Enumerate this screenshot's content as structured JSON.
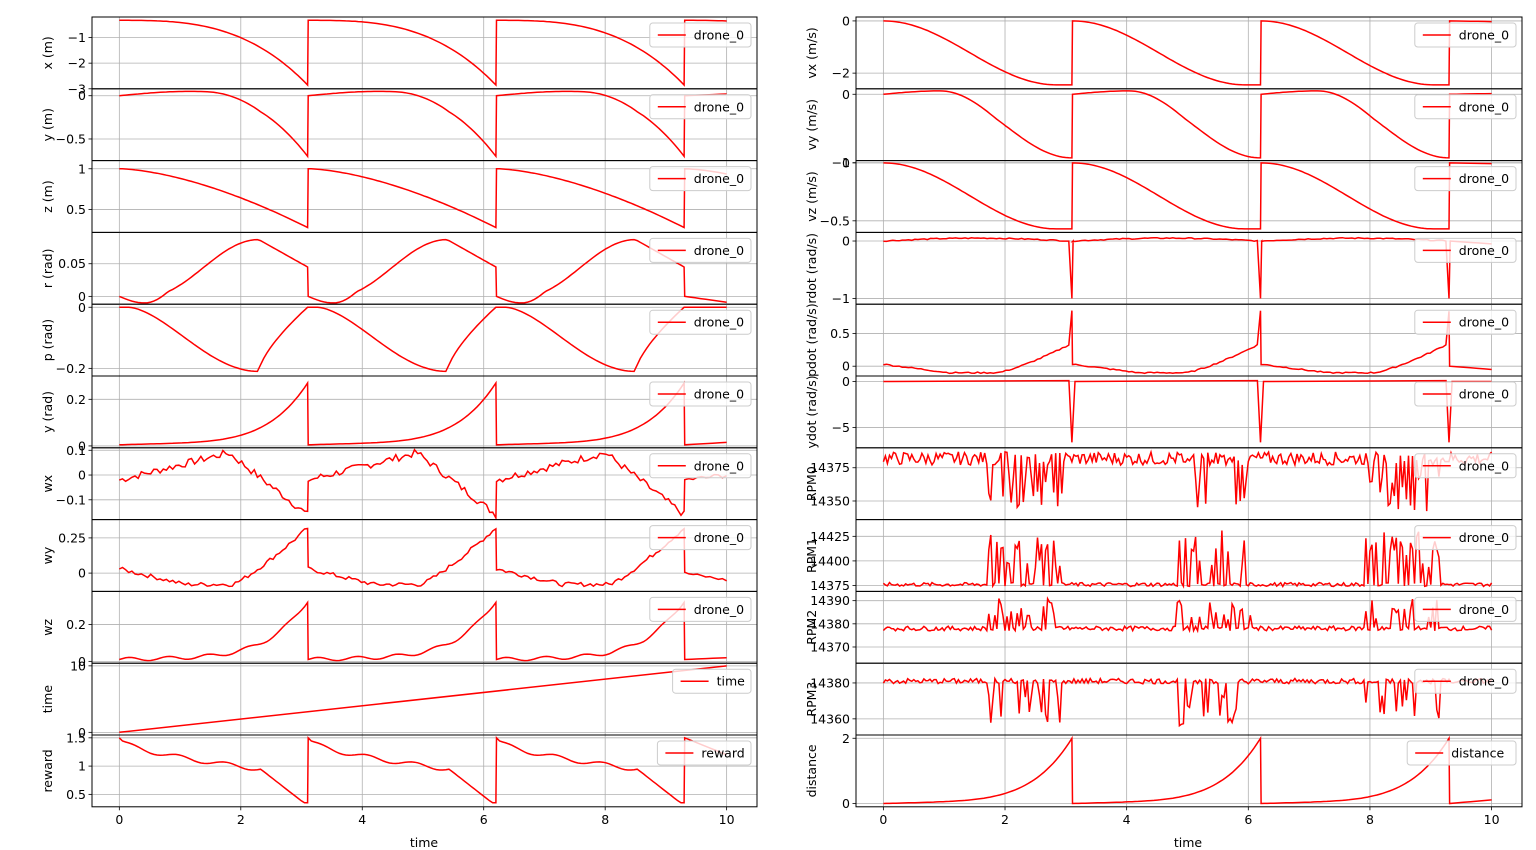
{
  "figure": {
    "xlabel": "time",
    "xlim": [
      -0.45,
      10.5
    ],
    "xticks": [
      0,
      2,
      4,
      6,
      8,
      10
    ],
    "line_color": "#ff0000"
  },
  "chart_data": [
    {
      "type": "line",
      "ylabel": "x (m)",
      "legend": "drone_0",
      "legend_position": "upper-right",
      "ylim": [
        -3,
        -0.2
      ],
      "yticks": [
        -3,
        -2,
        -1
      ],
      "shape": "decay",
      "params": {
        "a": -0.33,
        "b": -2.85,
        "p": 3
      },
      "x": [
        0,
        1,
        2,
        3.1,
        3.11,
        4.1,
        5.1,
        6.2,
        6.21,
        7.2,
        8.2,
        9.3,
        9.31,
        10
      ],
      "y": [
        -0.33,
        -0.39,
        -0.85,
        -2.85,
        -0.33,
        -0.39,
        -0.85,
        -2.85,
        -0.33,
        -0.39,
        -0.85,
        -2.85,
        -0.33,
        -0.33
      ]
    },
    {
      "type": "line",
      "ylabel": "y (m)",
      "legend": "drone_0",
      "legend_position": "upper-right",
      "ylim": [
        -0.75,
        0.08
      ],
      "yticks": [
        -0.5,
        0
      ],
      "shape": "dip",
      "params": {
        "a": 0,
        "b": -0.7,
        "up": 0.05,
        "p": 2.2
      },
      "x": [
        0,
        1,
        1.6,
        2.4,
        3.1,
        3.11,
        4.1,
        4.7,
        5.5,
        6.2,
        6.21,
        7.2,
        7.8,
        8.6,
        9.3,
        9.31,
        10
      ],
      "y": [
        0,
        0.03,
        0.05,
        -0.1,
        -0.7,
        0,
        0.03,
        0.05,
        -0.1,
        -0.7,
        0,
        0.03,
        0.05,
        -0.1,
        -0.7,
        0.01,
        0.02
      ]
    },
    {
      "type": "line",
      "ylabel": "z (m)",
      "legend": "drone_0",
      "legend_position": "upper-right",
      "ylim": [
        0.22,
        1.1
      ],
      "yticks": [
        0.5,
        1.0
      ],
      "shape": "decay",
      "params": {
        "a": 1.0,
        "b": 0.28,
        "p": 1.6
      },
      "x": [
        0,
        1,
        2,
        3.1,
        3.11,
        4.1,
        5.1,
        6.2,
        6.21,
        7.2,
        8.2,
        9.3,
        9.31,
        10
      ],
      "y": [
        1.0,
        0.96,
        0.82,
        0.28,
        1.0,
        0.96,
        0.82,
        0.28,
        1.0,
        0.96,
        0.82,
        0.28,
        1.0,
        0.98
      ]
    },
    {
      "type": "line",
      "ylabel": "r (rad)",
      "legend": "drone_0",
      "legend_position": "upper-right",
      "ylim": [
        -0.012,
        0.098
      ],
      "yticks": [
        0,
        0.05
      ],
      "shape": "bump",
      "params": {
        "low": -0.01,
        "high": 0.087,
        "end": 0.045
      },
      "x": [
        0,
        0.6,
        1.6,
        2.3,
        2.7,
        3.05,
        3.1,
        3.11,
        3.7,
        4.7,
        5.4,
        5.8,
        6.15,
        6.2,
        6.21,
        6.8,
        7.8,
        8.5,
        8.9,
        9.25,
        9.3,
        9.31,
        10
      ],
      "y": [
        0,
        -0.009,
        0.03,
        0.087,
        0.075,
        0.048,
        0.045,
        0,
        -0.009,
        0.03,
        0.087,
        0.075,
        0.048,
        0.045,
        0,
        -0.009,
        0.03,
        0.087,
        0.075,
        0.048,
        0.045,
        0,
        -0.009
      ]
    },
    {
      "type": "line",
      "ylabel": "p (rad)",
      "legend": "drone_0",
      "legend_position": "upper-right",
      "ylim": [
        -0.225,
        0.01
      ],
      "yticks": [
        -0.2,
        0
      ],
      "shape": "valley",
      "params": {
        "low": -0.21
      },
      "x": [
        0,
        0.3,
        1.5,
        2.3,
        3.1,
        3.11,
        3.5,
        4.7,
        5.4,
        6.2,
        6.21,
        6.6,
        7.8,
        8.5,
        9.3,
        9.31,
        10
      ],
      "y": [
        0,
        0,
        -0.13,
        -0.21,
        -0.01,
        0,
        0,
        -0.13,
        -0.21,
        -0.01,
        0,
        0,
        -0.13,
        -0.21,
        -0.01,
        0,
        0
      ]
    },
    {
      "type": "line",
      "ylabel": "y (rad)",
      "legend": "drone_0",
      "legend_position": "upper-right",
      "ylim": [
        -0.008,
        0.3
      ],
      "yticks": [
        0,
        0.2
      ],
      "shape": "rise",
      "params": {
        "a": 0.005,
        "b": 0.27
      },
      "x": [
        0,
        1,
        2,
        2.6,
        3.1,
        3.11,
        4.1,
        5.1,
        5.7,
        6.2,
        6.21,
        7.2,
        8.2,
        8.8,
        9.3,
        9.31,
        10
      ],
      "y": [
        0.005,
        0.015,
        0.025,
        0.08,
        0.27,
        0.005,
        0.015,
        0.025,
        0.08,
        0.27,
        0.005,
        0.015,
        0.025,
        0.08,
        0.27,
        0.005,
        0.01
      ]
    },
    {
      "type": "line",
      "ylabel": "wx",
      "legend": "drone_0",
      "legend_position": "upper-right",
      "ylim": [
        -0.18,
        0.11
      ],
      "yticks": [
        -0.1,
        0,
        0.1
      ],
      "shape": "noisy",
      "x": [
        0,
        0.3,
        1.2,
        1.7,
        2.1,
        2.5,
        2.9,
        3.1,
        3.11,
        4.1,
        4.8,
        5.2,
        5.6,
        6.0,
        6.2,
        6.21,
        7.2,
        7.9,
        8.3,
        8.7,
        9.1,
        9.3,
        9.31,
        10
      ],
      "y": [
        -0.01,
        -0.03,
        0.03,
        0.08,
        0.09,
        -0.05,
        -0.15,
        -0.16,
        -0.02,
        0.03,
        0.08,
        0.09,
        -0.05,
        -0.15,
        -0.16,
        -0.02,
        0.03,
        0.08,
        0.09,
        -0.05,
        -0.15,
        -0.16,
        -0.02,
        0.0
      ]
    },
    {
      "type": "line",
      "ylabel": "wy",
      "legend": "drone_0",
      "legend_position": "upper-right",
      "ylim": [
        -0.13,
        0.38
      ],
      "yticks": [
        0,
        0.25
      ],
      "shape": "noisy",
      "x": [
        0,
        0.5,
        1.2,
        2.0,
        2.5,
        3.0,
        3.1,
        3.11,
        3.6,
        4.3,
        5.1,
        5.6,
        6.1,
        6.2,
        6.21,
        6.7,
        7.4,
        8.2,
        8.7,
        9.2,
        9.3,
        9.31,
        10
      ],
      "y": [
        0.03,
        0.0,
        -0.08,
        -0.08,
        0.12,
        0.28,
        0.32,
        0.03,
        0.0,
        -0.08,
        -0.08,
        0.12,
        0.28,
        0.32,
        0.03,
        0.0,
        -0.08,
        -0.08,
        0.12,
        0.28,
        0.32,
        0.0,
        -0.05
      ]
    },
    {
      "type": "line",
      "ylabel": "wz",
      "legend": "drone_0",
      "legend_position": "upper-right",
      "ylim": [
        -0.01,
        0.38
      ],
      "yticks": [
        0,
        0.2
      ],
      "shape": "rise",
      "params": {
        "a": 0.01,
        "b": 0.33
      },
      "x": [
        0,
        1,
        2,
        2.6,
        3.1,
        3.11,
        4.1,
        5.1,
        5.7,
        6.2,
        6.21,
        7.2,
        8.2,
        8.8,
        9.3,
        9.31,
        10
      ],
      "y": [
        0.01,
        0.01,
        0.03,
        0.12,
        0.33,
        0.01,
        0.01,
        0.03,
        0.12,
        0.33,
        0.01,
        0.01,
        0.03,
        0.12,
        0.33,
        0.01,
        0.01
      ]
    },
    {
      "type": "line",
      "ylabel": "time",
      "legend": "time",
      "legend_position": "upper-right",
      "ylim": [
        -0.4,
        10.4
      ],
      "yticks": [
        0,
        10
      ],
      "shape": "linear",
      "x": [
        0,
        10
      ],
      "y": [
        0,
        10
      ]
    },
    {
      "type": "line",
      "ylabel": "reward",
      "legend": "reward",
      "legend_position": "upper-right",
      "ylim": [
        0.28,
        1.55
      ],
      "yticks": [
        0.5,
        1.0,
        1.5
      ],
      "shape": "decay",
      "params": {
        "a": 1.5,
        "b": 0.35,
        "p": 1
      },
      "x": [
        0,
        1,
        2,
        3.1,
        3.11,
        4.1,
        5.1,
        6.2,
        6.21,
        7.2,
        8.2,
        9.3,
        9.31,
        10
      ],
      "y": [
        1.5,
        1.15,
        1.0,
        0.35,
        1.5,
        1.15,
        1.0,
        0.35,
        1.5,
        1.15,
        1.0,
        0.35,
        1.5,
        1.35
      ]
    },
    {
      "type": "line",
      "ylabel": "vx (m/s)",
      "legend": "drone_0",
      "legend_position": "upper-right",
      "ylim": [
        -2.6,
        0.15
      ],
      "yticks": [
        -2,
        0
      ],
      "shape": "sdecay",
      "params": {
        "a": 0,
        "b": -2.45
      },
      "x": [
        0,
        1,
        2,
        3.1,
        3.11,
        4.1,
        5.1,
        6.2,
        6.21,
        7.2,
        8.2,
        9.3,
        9.31,
        10
      ],
      "y": [
        0,
        -0.3,
        -1.5,
        -2.45,
        0,
        -0.3,
        -1.5,
        -2.45,
        0,
        -0.3,
        -1.5,
        -2.45,
        0,
        -0.01
      ]
    },
    {
      "type": "line",
      "ylabel": "vy (m/s)",
      "legend": "drone_0",
      "legend_position": "upper-right",
      "ylim": [
        -0.97,
        0.08
      ],
      "yticks": [
        -1,
        0
      ],
      "shape": "sdip",
      "params": {
        "a": 0,
        "b": -0.93,
        "up": 0.05
      },
      "x": [
        0,
        1,
        2,
        3.1,
        3.11,
        4.1,
        5.1,
        6.2,
        6.21,
        7.2,
        8.2,
        9.3,
        9.31,
        10
      ],
      "y": [
        0,
        0.05,
        -0.3,
        -0.93,
        0,
        0.05,
        -0.3,
        -0.93,
        0,
        0.05,
        -0.3,
        -0.93,
        0,
        0.01
      ]
    },
    {
      "type": "line",
      "ylabel": "vz (m/s)",
      "legend": "drone_0",
      "legend_position": "upper-right",
      "ylim": [
        -0.6,
        0.02
      ],
      "yticks": [
        -0.5,
        0
      ],
      "shape": "sdecay",
      "params": {
        "a": 0,
        "b": -0.57
      },
      "x": [
        0,
        1,
        2,
        3.1,
        3.11,
        4.1,
        5.1,
        6.2,
        6.21,
        7.2,
        8.2,
        9.3,
        9.31,
        10
      ],
      "y": [
        0,
        -0.1,
        -0.3,
        -0.57,
        0,
        -0.1,
        -0.3,
        -0.57,
        0,
        -0.1,
        -0.3,
        -0.57,
        0,
        -0.02
      ]
    },
    {
      "type": "line",
      "ylabel": "rdot (rad/s)",
      "legend": "drone_0",
      "legend_position": "upper-right",
      "ylim": [
        -1.1,
        0.15
      ],
      "yticks": [
        -1,
        0
      ],
      "shape": "spike",
      "params": {
        "base": 0.02,
        "spike": -1.0
      },
      "x": [
        0,
        1,
        2,
        3,
        3.1,
        3.2,
        4,
        5,
        6,
        6.2,
        6.3,
        7,
        8,
        9,
        9.3,
        9.4,
        10
      ],
      "y": [
        0,
        0.02,
        0.05,
        0,
        -1.0,
        0,
        0.02,
        0.05,
        0,
        -1.0,
        0,
        0.02,
        0.05,
        0,
        -1.0,
        0,
        -0.05
      ]
    },
    {
      "type": "line",
      "ylabel": "pdot (rad/s)",
      "legend": "drone_0",
      "legend_position": "upper-right",
      "ylim": [
        -0.15,
        0.95
      ],
      "yticks": [
        0,
        0.5
      ],
      "shape": "spike",
      "params": {
        "base": -0.1,
        "spike": 0.85
      },
      "x": [
        0,
        0.5,
        1.5,
        2.5,
        3.0,
        3.1,
        3.2,
        4,
        5,
        6,
        6.2,
        6.3,
        7,
        8,
        9,
        9.3,
        9.4,
        10
      ],
      "y": [
        0,
        -0.05,
        -0.1,
        0.1,
        0.3,
        0.85,
        -0.05,
        -0.1,
        -0.1,
        0.3,
        0.85,
        -0.05,
        -0.1,
        -0.1,
        0.3,
        0.85,
        -0.05,
        -0.05
      ]
    },
    {
      "type": "line",
      "ylabel": "ydot (rad/s)",
      "legend": "drone_0",
      "legend_position": "upper-right",
      "ylim": [
        -7.2,
        0.6
      ],
      "yticks": [
        -5,
        0
      ],
      "shape": "spike",
      "params": {
        "base": 0.0,
        "spike": -6.6
      },
      "x": [
        0,
        3.05,
        3.1,
        3.15,
        6.15,
        6.2,
        6.25,
        9.25,
        9.3,
        9.35,
        10
      ],
      "y": [
        0,
        0.1,
        -6.6,
        0,
        0.1,
        -6.6,
        0,
        0.1,
        -6.6,
        0,
        0
      ]
    },
    {
      "type": "line",
      "ylabel": "RPM0",
      "legend": "drone_0",
      "legend_position": "upper-right",
      "ylim": [
        14336,
        14390
      ],
      "yticks": [
        14350,
        14375
      ],
      "shape": "rpm",
      "params": {
        "base": 14382,
        "amp": 5,
        "dip": -40
      },
      "x": [
        0,
        10
      ],
      "y": [
        14382,
        14380
      ]
    },
    {
      "type": "line",
      "ylabel": "RPM1",
      "legend": "drone_0",
      "legend_position": "upper-right",
      "ylim": [
        14369,
        14442
      ],
      "yticks": [
        14375,
        14400,
        14425
      ],
      "shape": "rpm",
      "params": {
        "base": 14376,
        "amp": 2,
        "dip": 55
      },
      "x": [
        0,
        10
      ],
      "y": [
        14376,
        14378
      ]
    },
    {
      "type": "line",
      "ylabel": "RPM2",
      "legend": "drone_0",
      "legend_position": "upper-right",
      "ylim": [
        14363,
        14394
      ],
      "yticks": [
        14370,
        14380,
        14390
      ],
      "shape": "rpm",
      "params": {
        "base": 14378,
        "amp": 1,
        "dip": 13
      },
      "x": [
        0,
        10
      ],
      "y": [
        14378,
        14378
      ]
    },
    {
      "type": "line",
      "ylabel": "RPM3",
      "legend": "drone_0",
      "legend_position": "upper-right",
      "ylim": [
        14351,
        14391
      ],
      "yticks": [
        14360,
        14380
      ],
      "shape": "rpm",
      "params": {
        "base": 14381,
        "amp": 1.5,
        "dip": -25
      },
      "x": [
        0,
        10
      ],
      "y": [
        14381,
        14380
      ]
    },
    {
      "type": "line",
      "ylabel": "distance",
      "legend": "distance",
      "legend_position": "upper-right",
      "ylim": [
        -0.1,
        2.1
      ],
      "yticks": [
        0,
        2
      ],
      "shape": "rise",
      "params": {
        "a": 0.0,
        "b": 2.0
      },
      "x": [
        0,
        1,
        2,
        2.6,
        3.1,
        3.11,
        4.1,
        5.1,
        5.7,
        6.2,
        6.21,
        7.2,
        8.2,
        8.8,
        9.3,
        9.31,
        10
      ],
      "y": [
        0,
        0.2,
        0.45,
        0.8,
        2.0,
        0,
        0.2,
        0.45,
        0.8,
        2.0,
        0,
        0.2,
        0.45,
        0.8,
        2.0,
        0.02,
        0.1
      ]
    }
  ]
}
